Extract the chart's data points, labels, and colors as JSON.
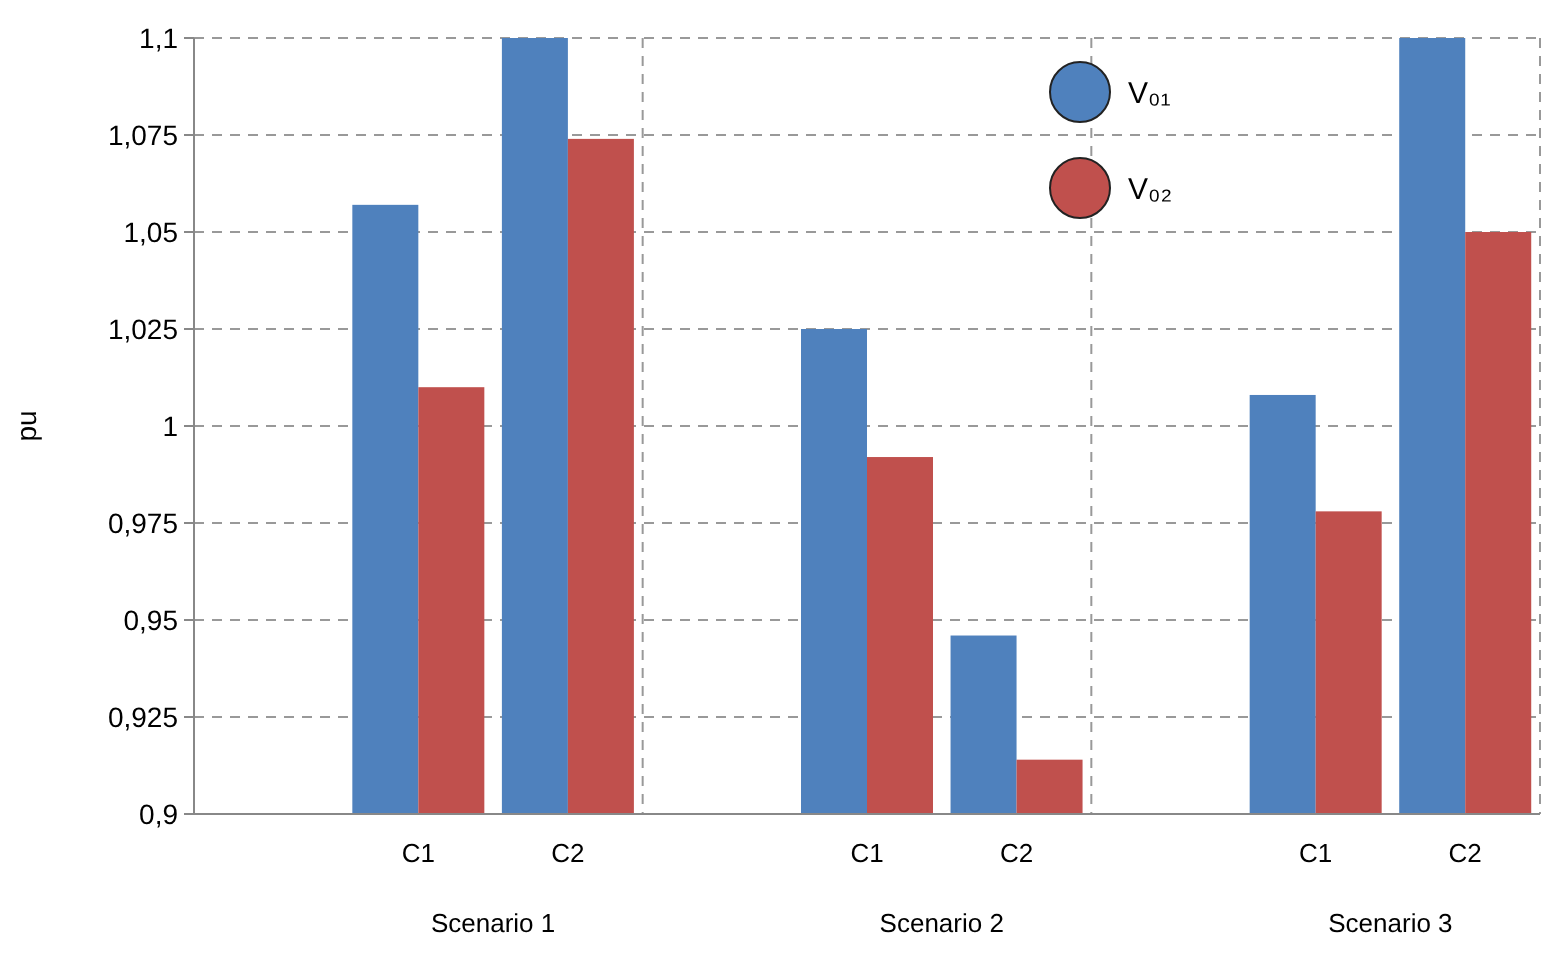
{
  "chart_data": {
    "type": "bar",
    "ylabel": "pu",
    "categories": [
      null,
      "C1",
      "C2",
      null,
      "C1",
      "C2",
      null,
      "C1",
      "C2"
    ],
    "series": [
      {
        "name": "V₀₁",
        "color": "#4f81bd",
        "values": [
          null,
          1.057,
          1.1,
          null,
          1.025,
          0.946,
          null,
          1.008,
          1.1
        ]
      },
      {
        "name": "V₀₂",
        "color": "#c0504d",
        "values": [
          null,
          1.01,
          1.074,
          null,
          0.992,
          0.914,
          null,
          0.978,
          1.05
        ]
      }
    ],
    "annotations": [
      "Scenario 1",
      "Scenario 2",
      "Scenario 3"
    ],
    "ylim": [
      0.9,
      1.1
    ],
    "yticks": [
      {
        "value": 0.9,
        "label": "0,9"
      },
      {
        "value": 0.925,
        "label": "0,925"
      },
      {
        "value": 0.95,
        "label": "0,95"
      },
      {
        "value": 0.975,
        "label": "0,975"
      },
      1,
      {
        "value": 1.025,
        "label": "1,025"
      },
      {
        "value": 1.05,
        "label": "1,05"
      },
      {
        "value": 1.075,
        "label": "1,075"
      },
      {
        "value": 1.1,
        "label": "1,1"
      }
    ],
    "grid": true,
    "legend": "top right",
    "marker": "circle"
  }
}
